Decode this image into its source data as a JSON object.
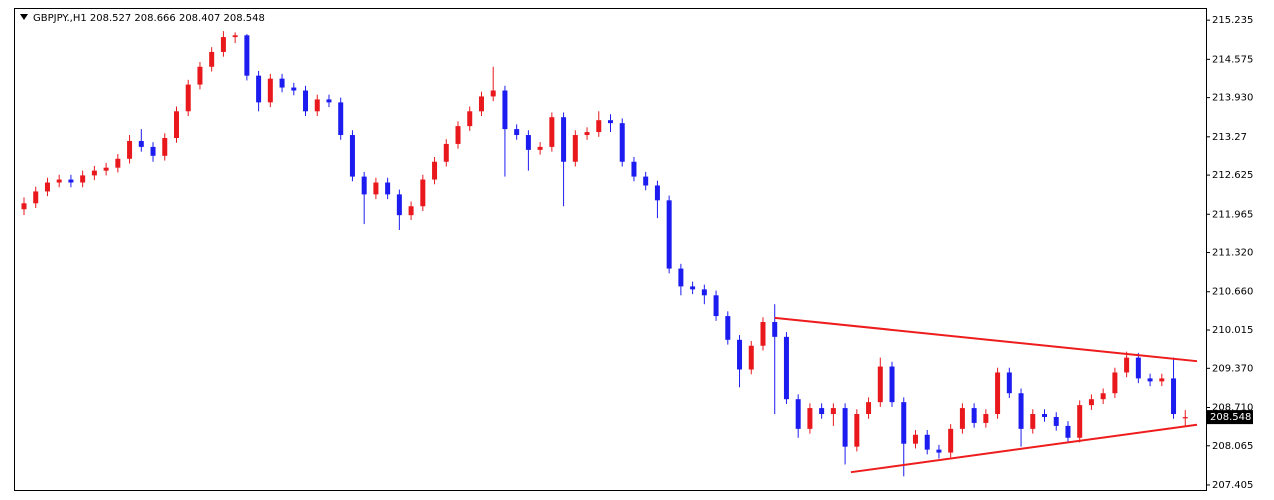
{
  "chart_data": {
    "type": "candlestick",
    "title": "GBPJPY.,H1  208.527 208.666 208.407 208.548",
    "up_color": "#e8181c",
    "down_color": "#1c1cf0",
    "ylim": [
      207.32,
      215.44
    ],
    "yticks": [
      215.235,
      214.575,
      {
        "value": 213.93,
        "label": "213.930"
      },
      213.27,
      212.625,
      211.965,
      {
        "value": 211.32,
        "label": "211.320"
      },
      {
        "value": 210.66,
        "label": "210.660"
      },
      210.015,
      {
        "value": 209.37,
        "label": "209.370"
      },
      {
        "value": 208.71,
        "label": "208.710"
      },
      208.065,
      207.405
    ],
    "last_price": 208.548,
    "series": [
      {
        "open": [
          212.05,
          212.15,
          212.35,
          212.5,
          212.55,
          212.5,
          212.62,
          212.7,
          212.75,
          212.9,
          213.2,
          213.1,
          212.95,
          213.25,
          213.7,
          214.15,
          214.45,
          214.7,
          214.95,
          214.98,
          214.3,
          213.85,
          214.25,
          214.1,
          214.05,
          213.7,
          213.9,
          213.85,
          213.3,
          212.6,
          212.3,
          212.5,
          212.3,
          211.95,
          212.1,
          212.55,
          212.85,
          213.15,
          213.45,
          213.7,
          213.95,
          214.05,
          213.4,
          213.3,
          213.05,
          213.1,
          213.6,
          212.85,
          213.3,
          213.35,
          213.55,
          213.5,
          212.85,
          212.6,
          212.45,
          212.2,
          211.05,
          210.75,
          210.7,
          210.6,
          210.25,
          209.85,
          209.35,
          209.75,
          210.15,
          209.9,
          208.85,
          208.35,
          208.7,
          208.6,
          208.7,
          208.05,
          208.6,
          208.8,
          209.4,
          208.8,
          208.1,
          208.25,
          208.0,
          207.95,
          208.35,
          208.7,
          208.45,
          208.6,
          209.3,
          208.95,
          208.35,
          208.6,
          208.55,
          208.4,
          208.2,
          208.75,
          208.85,
          208.95,
          209.3,
          209.55,
          209.2,
          209.15,
          209.2,
          208.527
        ],
        "high": [
          212.25,
          212.43,
          212.58,
          212.63,
          212.63,
          212.7,
          212.78,
          212.83,
          212.98,
          213.3,
          213.4,
          213.18,
          213.33,
          213.78,
          214.23,
          214.53,
          214.78,
          215.05,
          215.03,
          215.0,
          214.38,
          214.33,
          214.33,
          214.18,
          214.13,
          213.98,
          213.98,
          213.93,
          213.38,
          212.68,
          212.58,
          212.58,
          212.38,
          212.18,
          212.63,
          212.93,
          213.23,
          213.53,
          213.78,
          214.03,
          214.45,
          214.13,
          213.48,
          213.38,
          213.18,
          213.68,
          213.68,
          213.38,
          213.43,
          213.7,
          213.65,
          213.58,
          212.93,
          212.68,
          212.53,
          212.28,
          211.13,
          210.83,
          210.78,
          210.68,
          210.33,
          209.93,
          209.83,
          210.23,
          210.45,
          209.98,
          208.93,
          208.78,
          208.78,
          208.78,
          208.78,
          208.68,
          208.88,
          209.55,
          209.48,
          208.88,
          208.33,
          208.33,
          208.08,
          208.43,
          208.78,
          208.78,
          208.68,
          209.38,
          209.38,
          209.03,
          208.68,
          208.68,
          208.63,
          208.48,
          208.83,
          208.93,
          209.03,
          209.38,
          209.65,
          209.63,
          209.28,
          209.28,
          209.55,
          208.666
        ],
        "low": [
          211.95,
          212.07,
          212.27,
          212.42,
          212.42,
          212.42,
          212.54,
          212.62,
          212.67,
          212.82,
          213.02,
          212.85,
          212.87,
          213.17,
          213.62,
          214.07,
          214.37,
          214.62,
          214.85,
          214.22,
          213.7,
          213.77,
          214.02,
          213.97,
          213.62,
          213.62,
          213.77,
          213.22,
          212.52,
          211.8,
          212.22,
          212.22,
          211.7,
          211.87,
          212.02,
          212.47,
          212.77,
          213.07,
          213.37,
          213.62,
          213.87,
          212.6,
          213.22,
          212.7,
          212.97,
          213.02,
          212.1,
          212.77,
          213.22,
          213.27,
          213.35,
          212.77,
          212.52,
          212.37,
          211.9,
          210.97,
          210.6,
          210.62,
          210.45,
          210.17,
          209.77,
          209.05,
          209.27,
          209.67,
          208.6,
          208.77,
          208.2,
          208.27,
          208.52,
          208.4,
          207.75,
          207.97,
          208.52,
          208.72,
          208.72,
          207.55,
          208.02,
          207.92,
          207.85,
          207.87,
          208.27,
          208.37,
          208.37,
          208.52,
          208.87,
          208.05,
          208.27,
          208.47,
          208.32,
          208.12,
          208.12,
          208.67,
          208.77,
          208.87,
          209.22,
          209.12,
          209.07,
          209.07,
          208.52,
          208.407
        ],
        "close": [
          212.15,
          212.35,
          212.5,
          212.55,
          212.5,
          212.62,
          212.7,
          212.75,
          212.9,
          213.2,
          213.1,
          212.95,
          213.25,
          213.7,
          214.15,
          214.45,
          214.7,
          214.95,
          214.98,
          214.3,
          213.85,
          214.25,
          214.1,
          214.05,
          213.7,
          213.9,
          213.85,
          213.3,
          212.6,
          212.3,
          212.5,
          212.3,
          211.95,
          212.1,
          212.55,
          212.85,
          213.15,
          213.45,
          213.7,
          213.95,
          214.05,
          213.4,
          213.3,
          213.05,
          213.1,
          213.6,
          212.85,
          213.3,
          213.35,
          213.55,
          213.5,
          212.85,
          212.6,
          212.45,
          212.2,
          211.05,
          210.75,
          210.7,
          210.6,
          210.25,
          209.85,
          209.35,
          209.75,
          210.15,
          209.9,
          208.85,
          208.35,
          208.7,
          208.6,
          208.7,
          208.05,
          208.6,
          208.8,
          209.4,
          208.8,
          208.1,
          208.25,
          208.0,
          207.95,
          208.35,
          208.7,
          208.45,
          208.6,
          209.3,
          208.95,
          208.35,
          208.6,
          208.55,
          208.4,
          208.2,
          208.75,
          208.85,
          208.95,
          209.3,
          209.55,
          209.2,
          209.15,
          209.2,
          208.6,
          208.548
        ]
      }
    ],
    "trendlines": [
      {
        "color": "#ee1c1c",
        "x": [
          64,
          100
        ],
        "y": [
          210.22,
          209.49
        ]
      },
      {
        "color": "#ee1c1c",
        "x": [
          70.5,
          100
        ],
        "y": [
          207.62,
          208.42
        ]
      }
    ]
  }
}
